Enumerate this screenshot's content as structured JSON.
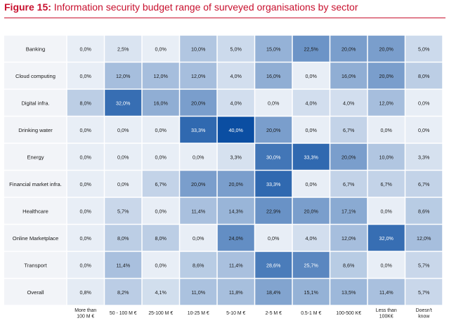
{
  "figure": {
    "label": "Figure 15:",
    "caption": "Information security budget range of surveyed organisations by sector"
  },
  "chart_data": {
    "type": "heatmap",
    "rows": [
      "Banking",
      "Cloud computing",
      "Digital infra.",
      "Drinking water",
      "Energy",
      "Financial market infra.",
      "Healthcare",
      "Online Marketplace",
      "Transport",
      "Overall"
    ],
    "columns": [
      [
        "More than",
        "100 M €"
      ],
      [
        "50 - 100 M €"
      ],
      [
        "25-100 M €"
      ],
      [
        "10-25 M €"
      ],
      [
        "5-10 M €"
      ],
      [
        "2-5 M €"
      ],
      [
        "0.5-1 M €"
      ],
      [
        "100-500 K€"
      ],
      [
        "Less than",
        "100K€"
      ],
      [
        "Doesn't",
        "know"
      ]
    ],
    "values": [
      [
        "0,0%",
        "2,5%",
        "0,0%",
        "10,0%",
        "5,0%",
        "15,0%",
        "22,5%",
        "20,0%",
        "20,0%",
        "5,0%"
      ],
      [
        "0,0%",
        "12,0%",
        "12,0%",
        "12,0%",
        "4,0%",
        "16,0%",
        "0,0%",
        "16,0%",
        "20,0%",
        "8,0%"
      ],
      [
        "8,0%",
        "32,0%",
        "16,0%",
        "20,0%",
        "4,0%",
        "0,0%",
        "4,0%",
        "4,0%",
        "12,0%",
        "0,0%"
      ],
      [
        "0,0%",
        "0,0%",
        "0,0%",
        "33,3%",
        "40,0%",
        "20,0%",
        "0,0%",
        "6,7%",
        "0,0%",
        "0,0%"
      ],
      [
        "0,0%",
        "0,0%",
        "0,0%",
        "0,0%",
        "3,3%",
        "30,0%",
        "33,3%",
        "20,0%",
        "10,0%",
        "3,3%"
      ],
      [
        "0,0%",
        "0,0%",
        "6,7%",
        "20,0%",
        "20,0%",
        "33,3%",
        "0,0%",
        "6,7%",
        "6,7%",
        "6,7%"
      ],
      [
        "0,0%",
        "5,7%",
        "0,0%",
        "11,4%",
        "14,3%",
        "22,9%",
        "20,0%",
        "17,1%",
        "0,0%",
        "8,6%"
      ],
      [
        "0,0%",
        "8,0%",
        "8,0%",
        "0,0%",
        "24,0%",
        "0,0%",
        "4,0%",
        "12,0%",
        "32,0%",
        "12,0%"
      ],
      [
        "0,0%",
        "11,4%",
        "0,0%",
        "8,6%",
        "11,4%",
        "28,6%",
        "25,7%",
        "8,6%",
        "0,0%",
        "5,7%"
      ],
      [
        "0,8%",
        "8,2%",
        "4,1%",
        "11,0%",
        "11,8%",
        "18,4%",
        "15,1%",
        "13,5%",
        "11,4%",
        "5,7%"
      ]
    ],
    "scale_max": 40,
    "colors": {
      "low": "#e8eef6",
      "high": "#0b4ea2",
      "title": "#c8102e",
      "row_header_bg": "#f2f4f8"
    }
  }
}
